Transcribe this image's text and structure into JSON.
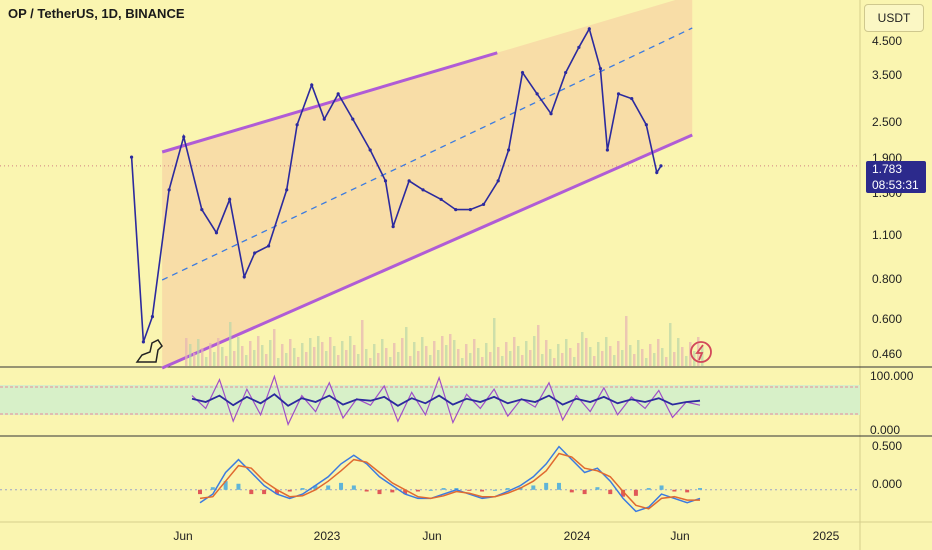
{
  "header": {
    "title": "OP / TetherUS, 1D, BINANCE",
    "currency_button": "USDT"
  },
  "price_tag": {
    "price": "1.783",
    "countdown": "08:53:31"
  },
  "colors": {
    "background": "#faf5b0",
    "channel_line": "#b05cd6",
    "channel_fill": "#f5c8a0",
    "mid_line": "#3b7be0",
    "price": "#2c2a9e",
    "volume": "#c8c8a0",
    "rsi_line": "#2c2a9e",
    "stoch_line": "#a050c8",
    "macd_line": "#3b7be0",
    "signal_line": "#e06a30",
    "price_tag_bg": "#2c2a8c"
  },
  "chart_data": [
    {
      "type": "line",
      "name": "price",
      "title": "OP / TetherUS, 1D, BINANCE",
      "x_tick_labels": [
        "Jun",
        "2023",
        "Jun",
        "2024",
        "Jun",
        "2025"
      ],
      "y_tick_labels": [
        "4.500",
        "3.500",
        "2.500",
        "1.900",
        "1.500",
        "1.100",
        "0.800",
        "0.600",
        "0.460"
      ],
      "y_scale": "log",
      "ylim": [
        0.42,
        5.5
      ],
      "grid": false,
      "series": [
        {
          "x": [
            "2022-06-01",
            "2022-06-18",
            "2022-07-01",
            "2022-07-25",
            "2022-08-15",
            "2022-09-10",
            "2022-10-01",
            "2022-10-20",
            "2022-11-10",
            "2022-11-25",
            "2022-12-15",
            "2023-01-10",
            "2023-01-25",
            "2023-02-15",
            "2023-03-05",
            "2023-03-25",
            "2023-04-15",
            "2023-05-10",
            "2023-06-01",
            "2023-06-12",
            "2023-07-05",
            "2023-07-25",
            "2023-08-20",
            "2023-09-10",
            "2023-10-01",
            "2023-10-20",
            "2023-11-10",
            "2023-11-25",
            "2023-12-15",
            "2024-01-05",
            "2024-01-25",
            "2024-02-15",
            "2024-03-05",
            "2024-03-20",
            "2024-04-05",
            "2024-04-15",
            "2024-05-01",
            "2024-05-20",
            "2024-06-10",
            "2024-06-25",
            "2024-07-01"
          ],
          "values": [
            1.9,
            0.5,
            0.6,
            1.5,
            2.2,
            1.3,
            1.1,
            1.4,
            0.8,
            0.95,
            1.0,
            1.5,
            2.4,
            3.2,
            2.5,
            3.0,
            2.5,
            2.0,
            1.6,
            1.15,
            1.6,
            1.5,
            1.4,
            1.3,
            1.3,
            1.35,
            1.6,
            2.0,
            3.5,
            3.0,
            2.6,
            3.5,
            4.2,
            4.8,
            3.6,
            2.0,
            3.0,
            2.9,
            2.4,
            1.7,
            1.783
          ]
        }
      ]
    },
    {
      "type": "line",
      "name": "oscillator",
      "y_tick_labels": [
        "100.000",
        "0.000"
      ],
      "ylim": [
        0,
        100
      ],
      "series": [
        {
          "values": [
            60,
            40,
            85,
            20,
            70,
            30,
            90,
            15,
            60,
            35,
            80,
            25,
            55,
            45,
            75,
            20,
            65,
            30,
            88,
            18,
            62,
            40,
            70,
            28,
            55,
            42,
            80,
            22,
            60,
            35,
            72,
            30,
            58,
            40,
            68,
            26,
            50,
            45
          ]
        },
        {
          "values": [
            55,
            50,
            60,
            45,
            58,
            48,
            62,
            44,
            56,
            50,
            60,
            46,
            54,
            52,
            58,
            44,
            56,
            48,
            60,
            46,
            55,
            50,
            58,
            48,
            54,
            50,
            60,
            46,
            55,
            50,
            58,
            48,
            54,
            50,
            56,
            46,
            50,
            52
          ]
        }
      ]
    },
    {
      "type": "line",
      "name": "macd",
      "y_tick_labels": [
        "0.500",
        "0.000"
      ],
      "ylim": [
        -0.35,
        0.6
      ],
      "series": [
        {
          "values": [
            -0.15,
            -0.05,
            0.2,
            0.35,
            0.2,
            0.05,
            -0.05,
            -0.1,
            -0.05,
            0.05,
            0.15,
            0.3,
            0.4,
            0.3,
            0.15,
            0.05,
            -0.05,
            -0.1,
            -0.1,
            -0.05,
            0.0,
            -0.05,
            -0.1,
            -0.08,
            -0.02,
            0.05,
            0.15,
            0.3,
            0.5,
            0.35,
            0.2,
            0.25,
            0.1,
            -0.1,
            -0.25,
            -0.2,
            -0.05,
            -0.1,
            -0.15,
            -0.1
          ]
        },
        {
          "values": [
            -0.1,
            -0.08,
            0.1,
            0.28,
            0.25,
            0.1,
            0.0,
            -0.08,
            -0.07,
            0.0,
            0.1,
            0.22,
            0.35,
            0.32,
            0.2,
            0.08,
            0.0,
            -0.08,
            -0.1,
            -0.07,
            -0.02,
            -0.04,
            -0.08,
            -0.08,
            -0.04,
            0.02,
            0.1,
            0.22,
            0.42,
            0.38,
            0.25,
            0.22,
            0.15,
            -0.02,
            -0.18,
            -0.22,
            -0.1,
            -0.08,
            -0.12,
            -0.12
          ]
        }
      ]
    }
  ]
}
